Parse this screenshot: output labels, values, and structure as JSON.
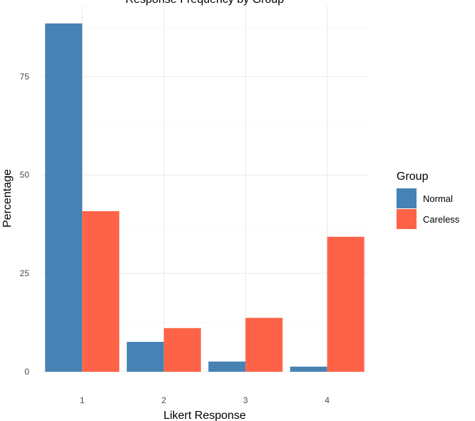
{
  "chart_data": {
    "type": "bar",
    "title": "Response Frequency by Group",
    "xlabel": "Likert Response",
    "ylabel": "Percentage",
    "categories": [
      "1",
      "2",
      "3",
      "4"
    ],
    "series": [
      {
        "name": "Normal",
        "color": "#4682B4",
        "values": [
          88.5,
          7.6,
          2.6,
          1.3
        ]
      },
      {
        "name": "Careless",
        "color": "#FF6347",
        "values": [
          40.8,
          11.1,
          13.7,
          34.3
        ]
      }
    ],
    "ylim": [
      0,
      93
    ],
    "yticks": [
      0,
      25,
      50,
      75
    ],
    "legend": {
      "title": "Group",
      "placement": "right"
    },
    "grid": true
  }
}
